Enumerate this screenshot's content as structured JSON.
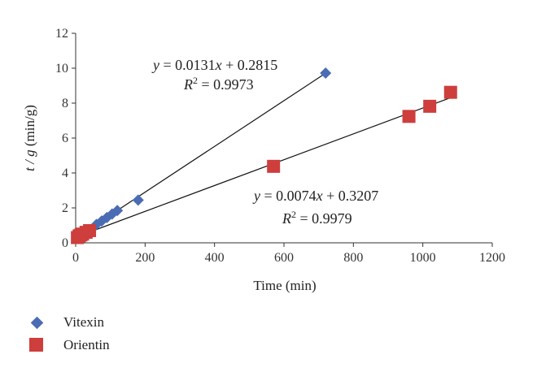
{
  "chart_data": {
    "type": "scatter",
    "xlabel": "Time (min)",
    "ylabel_var": "t / g",
    "ylabel_unit": " (min/g)",
    "xlim": [
      0,
      1200
    ],
    "ylim": [
      0,
      12
    ],
    "xticks": [
      0,
      200,
      400,
      600,
      800,
      1000,
      1200
    ],
    "yticks": [
      0,
      2,
      4,
      6,
      8,
      10,
      12
    ],
    "grid": false,
    "legend_position": "bottom-left",
    "series": [
      {
        "name": "Vitexin",
        "marker": "diamond",
        "color": "#4a6cb4",
        "points": [
          [
            5,
            0.35
          ],
          [
            10,
            0.45
          ],
          [
            15,
            0.55
          ],
          [
            20,
            0.6
          ],
          [
            30,
            0.7
          ],
          [
            60,
            1.05
          ],
          [
            75,
            1.25
          ],
          [
            90,
            1.45
          ],
          [
            105,
            1.65
          ],
          [
            120,
            1.85
          ],
          [
            180,
            2.45
          ],
          [
            720,
            9.72
          ]
        ],
        "fit": {
          "slope": 0.0131,
          "intercept": 0.2815,
          "x_range": [
            0,
            720
          ]
        },
        "equation": {
          "y": "y",
          "eq_rest": " = 0.0131",
          "x": "x",
          "tail": " + 0.2815",
          "r": "R",
          "sup": "2",
          "r_value": " = 0.9973"
        }
      },
      {
        "name": "Orientin",
        "marker": "square",
        "color": "#cd3e3c",
        "points": [
          [
            5,
            0.3
          ],
          [
            10,
            0.4
          ],
          [
            15,
            0.45
          ],
          [
            20,
            0.5
          ],
          [
            30,
            0.6
          ],
          [
            40,
            0.7
          ],
          [
            570,
            4.38
          ],
          [
            960,
            7.24
          ],
          [
            1020,
            7.82
          ],
          [
            1080,
            8.62
          ]
        ],
        "fit": {
          "slope": 0.0074,
          "intercept": 0.3207,
          "x_range": [
            0,
            1080
          ]
        },
        "equation": {
          "y": "y",
          "eq_rest": " = 0.0074",
          "x": "x",
          "tail": " + 0.3207",
          "r": "R",
          "sup": "2",
          "r_value": " = 0.9979"
        }
      }
    ]
  }
}
